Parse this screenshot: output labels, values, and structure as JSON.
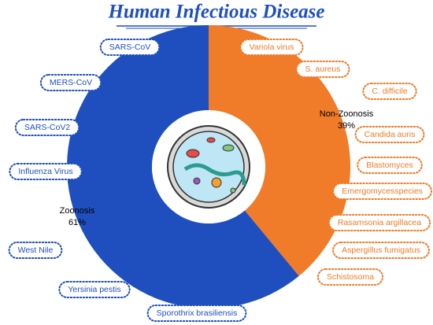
{
  "chart_data": {
    "type": "donut",
    "title": "Human Infectious Disease",
    "categories": [
      "Zoonosis",
      "Non-Zoonosis"
    ],
    "values": [
      61,
      39
    ],
    "value_labels": [
      "61%",
      "39%"
    ],
    "colors": [
      "#1f4fbf",
      "#f07b29"
    ],
    "zoonosis_examples": [
      "SARS-CoV",
      "MERS-CoV",
      "SARS-CoV2",
      "Influenza Virus",
      "West Nile",
      "Yersinia pestis",
      "Sporothrix brasiliensis"
    ],
    "non_zoonosis_examples": [
      "Variola virus",
      "S. aureus",
      "C. difficile",
      "Candida auris",
      "Blastomyces",
      "Emergomycesspecies",
      "Rasamsonia argillacea",
      "Aspergillus fumigatus",
      "Schistosoma"
    ]
  }
}
